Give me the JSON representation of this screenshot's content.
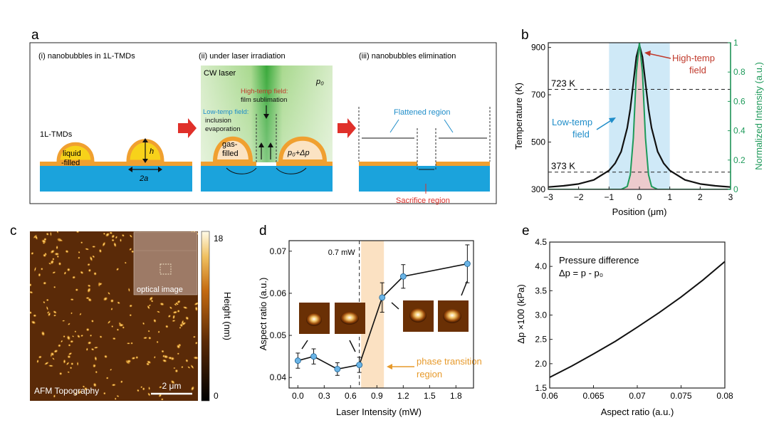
{
  "panel_letters": {
    "a": "a",
    "b": "b",
    "c": "c",
    "d": "d",
    "e": "e"
  },
  "panel_a": {
    "step1_title": "(i) nanobubbles in 1L-TMDs",
    "step2_title": "(ii) under laser irradiation",
    "step3_title": "(iii) nanobubbles elimination",
    "layer_label": "1L-TMDs",
    "liquid_label_1": "liquid",
    "liquid_label_2": "-filled",
    "h_label": "h",
    "width_label": "2a",
    "cw_laser": "CW laser",
    "p0_label": "p₀",
    "high_field_title": "High-temp field:",
    "high_field_desc": "film sublimation",
    "low_field_title": "Low-temp field:",
    "low_field_desc_1": "inclusion",
    "low_field_desc_2": "evaporation",
    "gas_label_1": "gas-",
    "gas_label_2": "filled",
    "pressure_label": "p₀+Δp",
    "flattened_label": "Flattened region",
    "sacrifice_label": "Sacrifice region",
    "colors": {
      "substrate": "#1ba3dc",
      "film": "#f0a030",
      "liquid": "#f7d21a",
      "gas": "#fbe3c3",
      "laser": "#3aa83a",
      "arrow_red": "#e0302a",
      "text_red": "#c0392b",
      "text_blue": "#1f8dc9"
    }
  },
  "panel_b": {
    "chart_data": {
      "type": "line",
      "xlabel": "Position (μm)",
      "ylabel_left": "Temperature (K)",
      "ylabel_right": "Normalized Intensity (a.u.)",
      "xlim": [
        -3,
        3
      ],
      "ylim_left": [
        300,
        920
      ],
      "ylim_right": [
        0,
        1
      ],
      "x_ticks": [
        "−3",
        "−2",
        "−1",
        "0",
        "1",
        "2",
        "3"
      ],
      "y_ticks_left": [
        "300",
        "500",
        "700",
        "900"
      ],
      "y_ticks_right": [
        "0",
        "0.2",
        "0.4",
        "0.6",
        "0.8",
        "1"
      ],
      "ref_lines": [
        {
          "value": 723,
          "label": "723 K"
        },
        {
          "value": 373,
          "label": "373 K"
        }
      ],
      "low_temp_band": [
        -1,
        1
      ],
      "annotation_high": [
        "High-temp",
        "field"
      ],
      "annotation_low": [
        "Low-temp",
        "field"
      ],
      "series": [
        {
          "name": "Temperature",
          "color": "#111111",
          "x": [
            -3,
            -2.5,
            -2,
            -1.5,
            -1,
            -0.8,
            -0.6,
            -0.4,
            -0.3,
            -0.2,
            -0.1,
            0,
            0.1,
            0.2,
            0.3,
            0.4,
            0.6,
            0.8,
            1,
            1.5,
            2,
            2.5,
            3
          ],
          "values": [
            310,
            315,
            323,
            340,
            380,
            410,
            460,
            560,
            640,
            750,
            860,
            910,
            860,
            750,
            640,
            560,
            460,
            410,
            380,
            340,
            323,
            315,
            310
          ]
        },
        {
          "name": "Normalized Intensity",
          "color": "#1e9a5a",
          "x": [
            -3,
            -0.6,
            -0.4,
            -0.3,
            -0.2,
            -0.1,
            0,
            0.1,
            0.2,
            0.3,
            0.4,
            0.6,
            3
          ],
          "values": [
            0,
            0,
            0.02,
            0.1,
            0.35,
            0.8,
            1,
            0.8,
            0.35,
            0.1,
            0.02,
            0,
            0
          ]
        }
      ]
    }
  },
  "panel_c": {
    "inset_label": "optical image",
    "topography_label": "AFM Topography",
    "scalebar_label": "2 μm",
    "colorbar_max": "18",
    "colorbar_min": "0",
    "colorbar_label": "Height (nm)"
  },
  "panel_d": {
    "chart_data": {
      "type": "line",
      "xlabel": "Laser Intensity (mW)",
      "ylabel": "Aspect ratio (a.u.)",
      "xlim": [
        -0.1,
        2.0
      ],
      "ylim": [
        0.0375,
        0.0725
      ],
      "x_ticks": [
        "0.0",
        "0.3",
        "0.6",
        "0.9",
        "1.2",
        "1.5",
        "1.8"
      ],
      "y_ticks": [
        "0.04",
        "0.05",
        "0.06",
        "0.07"
      ],
      "threshold": {
        "value": 0.7,
        "label": "0.7 mW"
      },
      "transition_band": [
        0.72,
        0.98
      ],
      "transition_label": [
        "phase transition",
        "region"
      ],
      "series": [
        {
          "name": "Aspect ratio",
          "x": [
            0.0,
            0.18,
            0.45,
            0.7,
            0.96,
            1.2,
            1.93
          ],
          "values": [
            0.044,
            0.045,
            0.042,
            0.043,
            0.059,
            0.064,
            0.067
          ],
          "errors": [
            0.0018,
            0.0018,
            0.0015,
            0.0018,
            0.0035,
            0.0028,
            0.0045
          ]
        }
      ]
    }
  },
  "panel_e": {
    "chart_data": {
      "type": "line",
      "xlabel": "Aspect ratio (a.u.)",
      "ylabel": "Δp ×100 (kPa)",
      "xlim": [
        0.06,
        0.08
      ],
      "ylim": [
        1.5,
        4.5
      ],
      "x_ticks": [
        "0.06",
        "0.065",
        "0.07",
        "0.075",
        "0.08"
      ],
      "y_ticks": [
        "1.5",
        "2.0",
        "2.5",
        "3.0",
        "3.5",
        "4.0",
        "4.5"
      ],
      "legend_title": "Pressure difference",
      "legend_formula": "Δp = p - p₀",
      "series": [
        {
          "name": "Δp",
          "x": [
            0.06,
            0.0625,
            0.065,
            0.0675,
            0.07,
            0.0725,
            0.075,
            0.0775,
            0.08
          ],
          "values": [
            1.72,
            1.95,
            2.2,
            2.46,
            2.75,
            3.05,
            3.37,
            3.72,
            4.1
          ]
        }
      ]
    }
  }
}
